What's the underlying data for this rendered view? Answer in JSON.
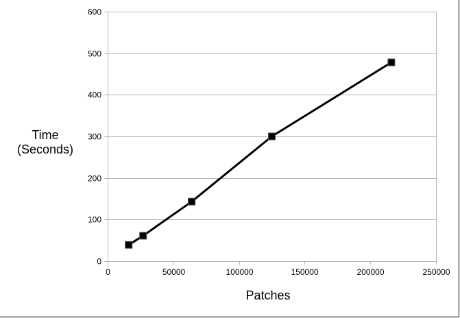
{
  "chart_data": {
    "type": "line",
    "title": "",
    "xlabel": "Patches",
    "ylabel_lines": [
      "Time",
      "(Seconds)"
    ],
    "xlim": [
      0,
      250000
    ],
    "ylim": [
      0,
      600
    ],
    "x_ticks": [
      0,
      50000,
      100000,
      150000,
      200000,
      250000
    ],
    "y_ticks": [
      0,
      100,
      200,
      300,
      400,
      500,
      600
    ],
    "grid": "horizontal",
    "legend": "none",
    "marker": "square",
    "line_color": "#000000",
    "grid_color": "#b3b3b3",
    "series": [
      {
        "x": [
          16000,
          27000,
          64000,
          125000,
          216000
        ],
        "values": [
          39,
          61,
          143,
          300,
          478
        ]
      }
    ]
  }
}
